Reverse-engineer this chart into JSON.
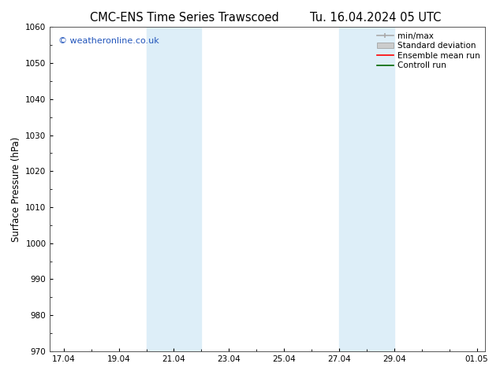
{
  "title_left": "CMC-ENS Time Series Trawscoed",
  "title_right": "Tu. 16.04.2024 05 UTC",
  "ylabel": "Surface Pressure (hPa)",
  "ylim": [
    970,
    1060
  ],
  "yticks": [
    970,
    980,
    990,
    1000,
    1010,
    1020,
    1030,
    1040,
    1050,
    1060
  ],
  "xlim_start": 16.5,
  "xlim_end": 32.3,
  "xtick_labels": [
    "17.04",
    "19.04",
    "21.04",
    "23.04",
    "25.04",
    "27.04",
    "29.04",
    "01.05"
  ],
  "xtick_positions": [
    17,
    19,
    21,
    23,
    25,
    27,
    29,
    32
  ],
  "shaded_bands": [
    {
      "x_start": 20.0,
      "x_end": 22.0
    },
    {
      "x_start": 27.0,
      "x_end": 29.0
    }
  ],
  "shaded_color": "#ddeef8",
  "background_color": "#ffffff",
  "watermark_text": "© weatheronline.co.uk",
  "watermark_color": "#2255bb",
  "title_fontsize": 10.5,
  "axis_fontsize": 8.5,
  "tick_fontsize": 7.5,
  "legend_fontsize": 7.5
}
